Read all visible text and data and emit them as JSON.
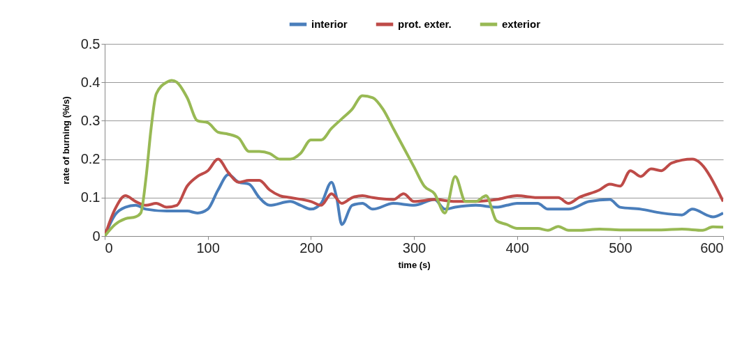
{
  "chart_data": {
    "type": "line",
    "xlabel": "time (s)",
    "ylabel": "rate of burning (%/s)",
    "xlim": [
      0,
      600
    ],
    "xticks": [
      0,
      100,
      200,
      300,
      400,
      500,
      600
    ],
    "ylim": [
      0,
      0.5
    ],
    "yticks": [
      0,
      0.1,
      0.2,
      0.3,
      0.4,
      0.5
    ],
    "grid": "y",
    "legend": "top",
    "marker": "none",
    "line_style": "solid",
    "series": [
      {
        "name": "interior",
        "color": "#4a7ebb",
        "x": [
          0,
          10,
          20,
          30,
          40,
          60,
          80,
          90,
          100,
          110,
          120,
          130,
          140,
          150,
          160,
          180,
          190,
          200,
          210,
          220,
          225,
          230,
          240,
          250,
          260,
          280,
          300,
          320,
          330,
          340,
          360,
          380,
          390,
          400,
          420,
          430,
          450,
          470,
          490,
          500,
          520,
          540,
          560,
          570,
          590,
          600
        ],
        "values": [
          0,
          0.055,
          0.075,
          0.08,
          0.07,
          0.065,
          0.065,
          0.06,
          0.07,
          0.12,
          0.16,
          0.14,
          0.135,
          0.1,
          0.08,
          0.09,
          0.08,
          0.07,
          0.085,
          0.14,
          0.1,
          0.03,
          0.08,
          0.085,
          0.07,
          0.085,
          0.08,
          0.095,
          0.07,
          0.075,
          0.08,
          0.075,
          0.08,
          0.085,
          0.085,
          0.07,
          0.07,
          0.09,
          0.095,
          0.075,
          0.07,
          0.06,
          0.055,
          0.07,
          0.05,
          0.06
        ]
      },
      {
        "name": "prot. exter.",
        "color": "#be4b48",
        "x": [
          0,
          10,
          20,
          30,
          40,
          50,
          60,
          70,
          80,
          90,
          100,
          110,
          120,
          130,
          140,
          150,
          160,
          170,
          180,
          200,
          210,
          220,
          230,
          240,
          250,
          260,
          280,
          290,
          300,
          320,
          340,
          360,
          380,
          400,
          420,
          440,
          450,
          460,
          480,
          490,
          500,
          510,
          520,
          530,
          540,
          550,
          570,
          600
        ],
        "values": [
          0,
          0.07,
          0.105,
          0.09,
          0.08,
          0.085,
          0.075,
          0.08,
          0.13,
          0.155,
          0.17,
          0.2,
          0.165,
          0.14,
          0.145,
          0.145,
          0.12,
          0.105,
          0.1,
          0.09,
          0.08,
          0.11,
          0.085,
          0.1,
          0.105,
          0.1,
          0.095,
          0.11,
          0.09,
          0.095,
          0.09,
          0.09,
          0.095,
          0.105,
          0.1,
          0.1,
          0.085,
          0.1,
          0.12,
          0.135,
          0.13,
          0.17,
          0.155,
          0.175,
          0.17,
          0.19,
          0.2,
          0.09
        ]
      },
      {
        "name": "exterior",
        "color": "#98b954",
        "x": [
          0,
          10,
          20,
          30,
          35,
          40,
          45,
          50,
          60,
          65,
          70,
          80,
          90,
          100,
          110,
          120,
          130,
          140,
          150,
          160,
          170,
          180,
          190,
          200,
          210,
          220,
          230,
          240,
          250,
          260,
          270,
          280,
          290,
          300,
          310,
          320,
          330,
          340,
          350,
          360,
          370,
          380,
          390,
          400,
          420,
          430,
          440,
          450,
          460,
          480,
          500,
          540,
          560,
          580,
          590,
          600
        ],
        "values": [
          0,
          0.03,
          0.045,
          0.05,
          0.06,
          0.15,
          0.28,
          0.37,
          0.4,
          0.405,
          0.4,
          0.36,
          0.3,
          0.295,
          0.27,
          0.265,
          0.255,
          0.22,
          0.22,
          0.215,
          0.2,
          0.2,
          0.215,
          0.25,
          0.25,
          0.28,
          0.305,
          0.33,
          0.365,
          0.36,
          0.33,
          0.28,
          0.23,
          0.18,
          0.13,
          0.11,
          0.06,
          0.155,
          0.09,
          0.09,
          0.105,
          0.04,
          0.03,
          0.02,
          0.02,
          0.015,
          0.025,
          0.015,
          0.015,
          0.018,
          0.016,
          0.016,
          0.018,
          0.015,
          0.024,
          0.023
        ]
      }
    ]
  }
}
